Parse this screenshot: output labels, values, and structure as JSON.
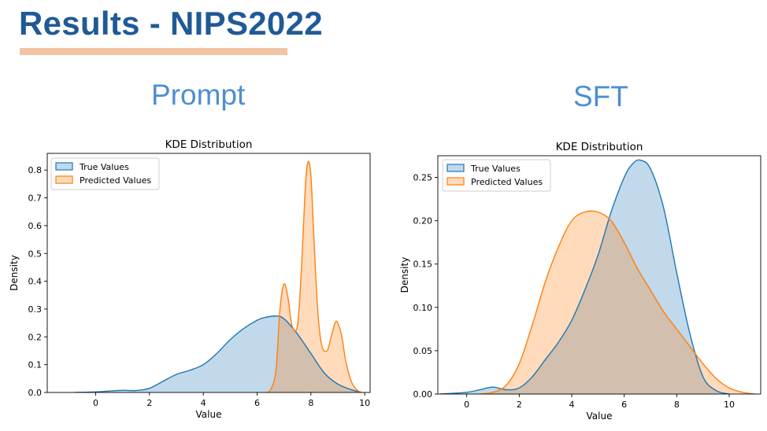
{
  "slide": {
    "title": "Results - NIPS2022",
    "panels": [
      {
        "label": "Prompt"
      },
      {
        "label": "SFT"
      }
    ]
  },
  "colors": {
    "title": "#1f5a96",
    "underline": "#f2c4a4",
    "panel_label": "#4d8fd1",
    "true_values": "#1f77b4",
    "predicted_values": "#ff7f0e"
  },
  "chart_data": [
    {
      "type": "area",
      "title": "KDE Distribution",
      "xlabel": "Value",
      "ylabel": "Density",
      "xlim": [
        -1.8,
        10.2
      ],
      "ylim": [
        0,
        0.86
      ],
      "xticks": [
        0,
        2,
        4,
        6,
        8,
        10
      ],
      "yticks": [
        0.0,
        0.1,
        0.2,
        0.3,
        0.4,
        0.5,
        0.6,
        0.7,
        0.8
      ],
      "ytick_labels": [
        "0.0",
        "0.1",
        "0.2",
        "0.3",
        "0.4",
        "0.5",
        "0.6",
        "0.7",
        "0.8"
      ],
      "legend_position": "top-left",
      "series": [
        {
          "name": "True Values",
          "color": "#1f77b4",
          "x": [
            -0.8,
            0,
            0.5,
            1,
            1.5,
            2,
            2.5,
            3,
            3.5,
            4,
            4.5,
            5,
            5.5,
            6,
            6.3,
            6.7,
            7,
            7.5,
            8,
            8.5,
            9,
            9.5,
            9.8
          ],
          "y": [
            0,
            0.002,
            0.005,
            0.008,
            0.007,
            0.015,
            0.04,
            0.065,
            0.08,
            0.1,
            0.14,
            0.19,
            0.23,
            0.26,
            0.27,
            0.275,
            0.265,
            0.21,
            0.14,
            0.07,
            0.03,
            0.01,
            0.002
          ]
        },
        {
          "name": "Predicted Values",
          "color": "#ff7f0e",
          "x": [
            6.3,
            6.5,
            6.7,
            6.85,
            7.0,
            7.15,
            7.3,
            7.5,
            7.65,
            7.8,
            7.9,
            8.0,
            8.1,
            8.25,
            8.4,
            8.6,
            8.75,
            8.9,
            9.0,
            9.15,
            9.3,
            9.5,
            9.7,
            9.9
          ],
          "y": [
            0,
            0.01,
            0.08,
            0.3,
            0.39,
            0.34,
            0.24,
            0.24,
            0.45,
            0.75,
            0.83,
            0.78,
            0.58,
            0.3,
            0.17,
            0.15,
            0.2,
            0.25,
            0.25,
            0.2,
            0.11,
            0.04,
            0.01,
            0
          ]
        }
      ]
    },
    {
      "type": "area",
      "title": "KDE Distribution",
      "xlabel": "Value",
      "ylabel": "Density",
      "xlim": [
        -1.1,
        11.2
      ],
      "ylim": [
        0,
        0.275
      ],
      "xticks": [
        0,
        2,
        4,
        6,
        8,
        10
      ],
      "yticks": [
        0.0,
        0.05,
        0.1,
        0.15,
        0.2,
        0.25
      ],
      "ytick_labels": [
        "0.00",
        "0.05",
        "0.10",
        "0.15",
        "0.20",
        "0.25"
      ],
      "legend_position": "top-left",
      "series": [
        {
          "name": "True Values",
          "color": "#1f77b4",
          "x": [
            -1,
            0,
            0.5,
            1,
            1.5,
            2,
            2.5,
            3,
            3.5,
            4,
            4.5,
            5,
            5.5,
            6,
            6.3,
            6.6,
            7,
            7.5,
            8,
            8.5,
            9,
            9.5,
            10
          ],
          "y": [
            0,
            0.002,
            0.005,
            0.008,
            0.005,
            0.007,
            0.02,
            0.04,
            0.06,
            0.085,
            0.12,
            0.16,
            0.21,
            0.25,
            0.265,
            0.27,
            0.26,
            0.215,
            0.14,
            0.07,
            0.02,
            0.004,
            0
          ]
        },
        {
          "name": "Predicted Values",
          "color": "#ff7f0e",
          "x": [
            0.5,
            1,
            1.5,
            2,
            2.5,
            3,
            3.5,
            4,
            4.5,
            5,
            5.5,
            6,
            6.5,
            7,
            7.5,
            8,
            8.5,
            9,
            9.5,
            10,
            10.5,
            11
          ],
          "y": [
            0,
            0.002,
            0.01,
            0.035,
            0.08,
            0.13,
            0.17,
            0.2,
            0.21,
            0.21,
            0.2,
            0.175,
            0.145,
            0.12,
            0.095,
            0.075,
            0.055,
            0.035,
            0.018,
            0.007,
            0.002,
            0
          ]
        }
      ]
    }
  ]
}
